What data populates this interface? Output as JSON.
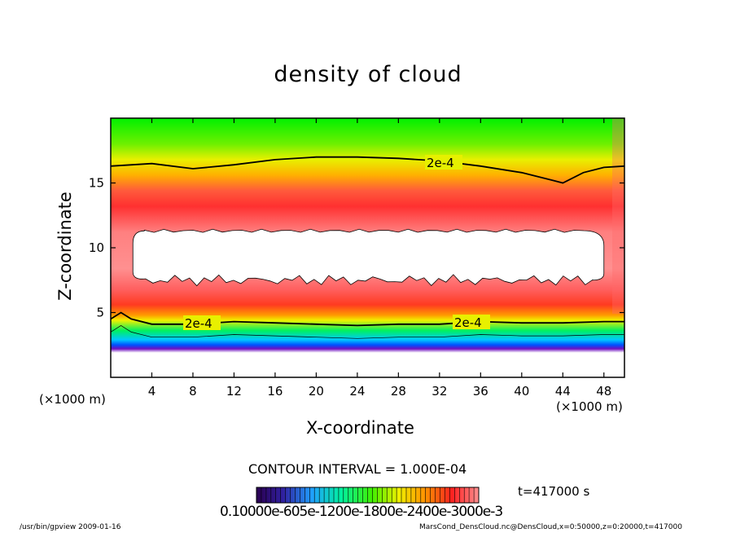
{
  "chart_data": {
    "type": "heatmap",
    "title": "density of cloud",
    "xlabel": "X-coordinate",
    "ylabel": "Z-coordinate",
    "x_unit_label": "(×1000 m)",
    "y_unit_label": "(×1000 m)",
    "xlim": [
      0,
      50
    ],
    "ylim": [
      0,
      20
    ],
    "x_ticks": [
      4,
      8,
      12,
      16,
      20,
      24,
      28,
      32,
      36,
      40,
      44,
      48
    ],
    "y_ticks": [
      5,
      10,
      15
    ],
    "contour_labels": [
      "2e-4",
      "2e-4",
      "2e-4"
    ],
    "contour_interval": "CONTOUR INTERVAL = 1.000E-04",
    "time": "t=417000 s",
    "colorbar_labels": "0.10000e-605e-1200e-1800e-2400e-3000e-3",
    "upper_contour_2e4_z": [
      [
        0,
        16.3
      ],
      [
        4,
        16.5
      ],
      [
        8,
        16.1
      ],
      [
        12,
        16.4
      ],
      [
        16,
        16.8
      ],
      [
        20,
        17.0
      ],
      [
        24,
        17.0
      ],
      [
        28,
        16.9
      ],
      [
        32,
        16.7
      ],
      [
        36,
        16.3
      ],
      [
        40,
        15.8
      ],
      [
        43,
        15.2
      ],
      [
        44,
        15.0
      ],
      [
        46,
        15.8
      ],
      [
        48,
        16.2
      ],
      [
        50,
        16.3
      ]
    ],
    "lower_contour_2e4_z": [
      [
        0,
        4.5
      ],
      [
        1,
        5.0
      ],
      [
        2,
        4.5
      ],
      [
        4,
        4.1
      ],
      [
        8,
        4.1
      ],
      [
        12,
        4.3
      ],
      [
        16,
        4.2
      ],
      [
        20,
        4.1
      ],
      [
        24,
        4.0
      ],
      [
        28,
        4.1
      ],
      [
        32,
        4.1
      ],
      [
        36,
        4.3
      ],
      [
        40,
        4.2
      ],
      [
        44,
        4.2
      ],
      [
        48,
        4.3
      ],
      [
        50,
        4.3
      ]
    ],
    "cloud_top_z": 16.5,
    "cloud_bottom_z": 2.0,
    "saturated_core": {
      "x_range": [
        2,
        48
      ],
      "z_range": [
        7.5,
        11.3
      ]
    }
  },
  "footer": {
    "left": "/usr/bin/gpview   2009-01-16",
    "right": "MarsCond_DensCloud.nc@DensCloud,x=0:50000,z=0:20000,t=417000"
  }
}
